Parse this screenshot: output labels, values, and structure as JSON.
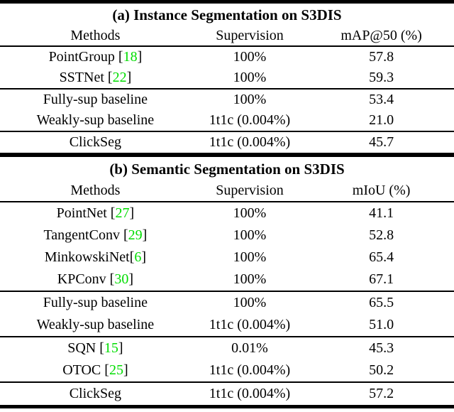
{
  "figure": {
    "background": "#ffffff",
    "text_color": "#000000",
    "citation_color": "#00dd00"
  },
  "tables": [
    {
      "title": "(a) Instance Segmentation on S3DIS",
      "columns": [
        "Methods",
        "Supervision",
        "mAP@50 (%)"
      ],
      "groups": [
        {
          "rows": [
            {
              "pre": "PointGroup [",
              "cite": "18",
              "post": "]",
              "supervision": "100%",
              "score": "57.8"
            },
            {
              "pre": "SSTNet [",
              "cite": "22",
              "post": "]",
              "supervision": "100%",
              "score": "59.3"
            }
          ]
        },
        {
          "rows": [
            {
              "pre": "Fully-sup baseline",
              "cite": "",
              "post": "",
              "supervision": "100%",
              "score": "53.4"
            },
            {
              "pre": "Weakly-sup baseline",
              "cite": "",
              "post": "",
              "supervision": "1t1c (0.004%)",
              "score": "21.0"
            }
          ]
        },
        {
          "rows": [
            {
              "pre": "ClickSeg",
              "cite": "",
              "post": "",
              "supervision": "1t1c (0.004%)",
              "score": "45.7"
            }
          ]
        }
      ]
    },
    {
      "title": "(b) Semantic Segmentation on S3DIS",
      "columns": [
        "Methods",
        "Supervision",
        "mIoU (%)"
      ],
      "groups": [
        {
          "rows": [
            {
              "pre": "PointNet [",
              "cite": "27",
              "post": "]",
              "supervision": "100%",
              "score": "41.1"
            },
            {
              "pre": "TangentConv [",
              "cite": "29",
              "post": "]",
              "supervision": "100%",
              "score": "52.8"
            },
            {
              "pre": "MinkowskiNet[",
              "cite": "6",
              "post": "]",
              "supervision": "100%",
              "score": "65.4"
            },
            {
              "pre": "KPConv [",
              "cite": "30",
              "post": "]",
              "supervision": "100%",
              "score": "67.1"
            }
          ]
        },
        {
          "rows": [
            {
              "pre": "Fully-sup baseline",
              "cite": "",
              "post": "",
              "supervision": "100%",
              "score": "65.5"
            },
            {
              "pre": "Weakly-sup baseline",
              "cite": "",
              "post": "",
              "supervision": "1t1c (0.004%)",
              "score": "51.0"
            }
          ]
        },
        {
          "rows": [
            {
              "pre": "SQN [",
              "cite": "15",
              "post": "]",
              "supervision": "0.01%",
              "score": "45.3"
            },
            {
              "pre": "OTOC [",
              "cite": "25",
              "post": "]",
              "supervision": "1t1c (0.004%)",
              "score": "50.2"
            }
          ]
        },
        {
          "rows": [
            {
              "pre": "ClickSeg",
              "cite": "",
              "post": "",
              "supervision": "1t1c (0.004%)",
              "score": "57.2"
            }
          ]
        }
      ]
    }
  ]
}
